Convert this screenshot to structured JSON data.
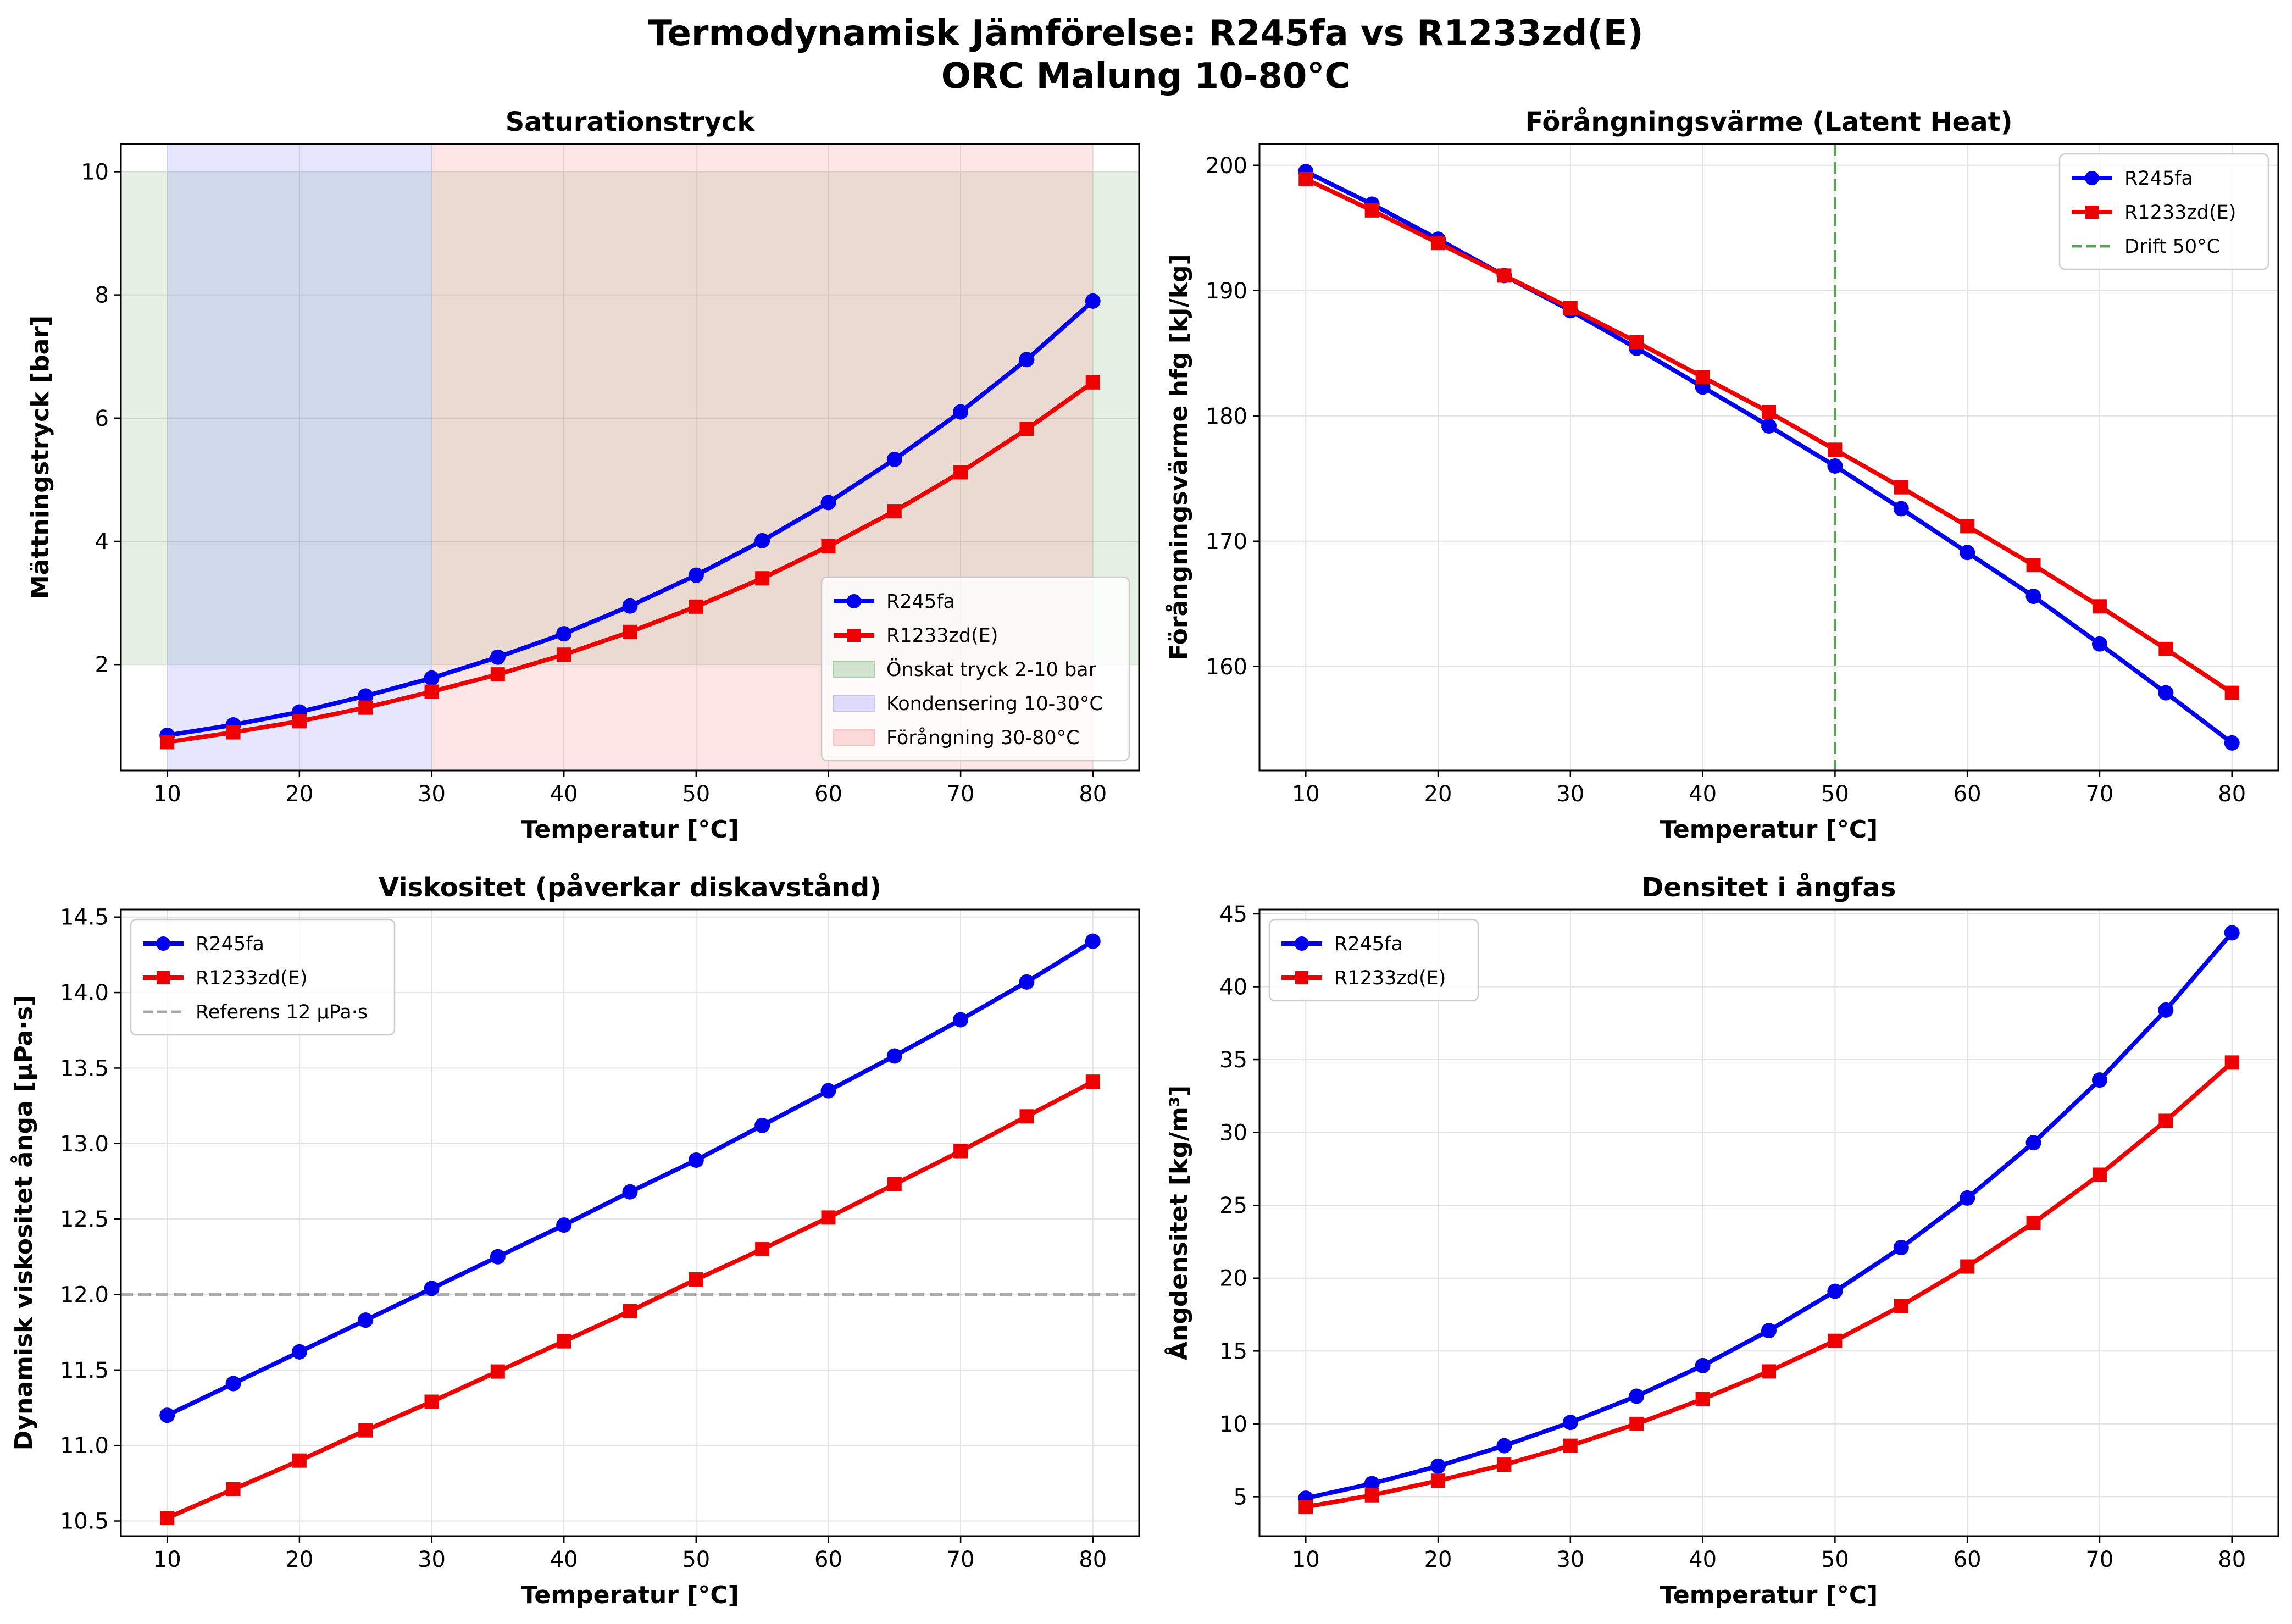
{
  "figure": {
    "title_line1": "Termodynamisk Jämförelse: R245fa vs R1233zd(E)",
    "title_line2": "ORC Malung 10-80°C"
  },
  "colors": {
    "r245fa": "#0000ee",
    "r1233zd": "#ee0000",
    "green_band": "#2e8b2e",
    "blue_band": "#6666ff",
    "red_band": "#ff6666",
    "drift_line": "#5aa05a",
    "ref_line": "#aaaaaa",
    "grid": "#e2e2e2"
  },
  "chart_data": [
    {
      "type": "line",
      "title": "Saturationstryck",
      "xlabel": "Temperatur [°C]",
      "ylabel": "Mättningstryck [bar]",
      "xlim": [
        6.5,
        83.5
      ],
      "ylim": [
        0.28,
        10.45
      ],
      "xticks": [
        10,
        20,
        30,
        40,
        50,
        60,
        70,
        80
      ],
      "yticks": [
        2,
        4,
        6,
        8,
        10
      ],
      "x": [
        10,
        15,
        20,
        25,
        30,
        35,
        40,
        45,
        50,
        55,
        60,
        65,
        70,
        75,
        80
      ],
      "series": [
        {
          "name": "R245fa",
          "marker": "circle",
          "values": [
            0.85,
            1.02,
            1.23,
            1.49,
            1.78,
            2.12,
            2.5,
            2.95,
            3.45,
            4.01,
            4.63,
            5.33,
            6.1,
            6.95,
            7.9
          ]
        },
        {
          "name": "R1233zd(E)",
          "marker": "square",
          "values": [
            0.74,
            0.9,
            1.08,
            1.3,
            1.56,
            1.84,
            2.16,
            2.53,
            2.94,
            3.4,
            3.92,
            4.49,
            5.12,
            5.82,
            6.58
          ]
        }
      ],
      "bands": [
        {
          "name": "Önskat tryck 2-10 bar",
          "axis": "y",
          "from": 2,
          "to": 10
        },
        {
          "name": "Kondensering 10-30°C",
          "axis": "x",
          "from": 10,
          "to": 30
        },
        {
          "name": "Förångning 30-80°C",
          "axis": "x",
          "from": 30,
          "to": 80
        }
      ],
      "legend": "lower-right"
    },
    {
      "type": "line",
      "title": "Förångningsvärme (Latent Heat)",
      "xlabel": "Temperatur [°C]",
      "ylabel": "Förångningsvärme hfg [kJ/kg]",
      "xlim": [
        6.5,
        83.5
      ],
      "ylim": [
        151.7,
        201.7
      ],
      "xticks": [
        10,
        20,
        30,
        40,
        50,
        60,
        70,
        80
      ],
      "yticks": [
        160,
        170,
        180,
        190,
        200
      ],
      "x": [
        10,
        15,
        20,
        25,
        30,
        35,
        40,
        45,
        50,
        55,
        60,
        65,
        70,
        75,
        80
      ],
      "series": [
        {
          "name": "R245fa",
          "marker": "circle",
          "values": [
            199.5,
            196.9,
            194.1,
            191.2,
            188.4,
            185.4,
            182.3,
            179.2,
            176.0,
            172.6,
            169.1,
            165.6,
            161.8,
            157.9,
            153.9
          ]
        },
        {
          "name": "R1233zd(E)",
          "marker": "square",
          "values": [
            198.9,
            196.4,
            193.8,
            191.2,
            188.6,
            185.9,
            183.1,
            180.3,
            177.3,
            174.3,
            171.2,
            168.1,
            164.8,
            161.4,
            157.9
          ]
        }
      ],
      "vlines": [
        {
          "name": "Drift 50°C",
          "x": 50
        }
      ],
      "legend": "upper-right"
    },
    {
      "type": "line",
      "title": "Viskositet (påverkar diskavstånd)",
      "xlabel": "Temperatur [°C]",
      "ylabel": "Dynamisk viskositet ånga [μPa·s]",
      "xlim": [
        6.5,
        83.5
      ],
      "ylim": [
        10.4,
        14.55
      ],
      "xticks": [
        10,
        20,
        30,
        40,
        50,
        60,
        70,
        80
      ],
      "yticks": [
        10.5,
        11.0,
        11.5,
        12.0,
        12.5,
        13.0,
        13.5,
        14.0,
        14.5
      ],
      "ytick_labels": [
        "10.5",
        "11.0",
        "11.5",
        "12.0",
        "12.5",
        "13.0",
        "13.5",
        "14.0",
        "14.5"
      ],
      "x": [
        10,
        15,
        20,
        25,
        30,
        35,
        40,
        45,
        50,
        55,
        60,
        65,
        70,
        75,
        80
      ],
      "series": [
        {
          "name": "R245fa",
          "marker": "circle",
          "values": [
            11.2,
            11.41,
            11.62,
            11.83,
            12.04,
            12.25,
            12.46,
            12.68,
            12.89,
            13.12,
            13.35,
            13.58,
            13.82,
            14.07,
            14.34
          ]
        },
        {
          "name": "R1233zd(E)",
          "marker": "square",
          "values": [
            10.52,
            10.71,
            10.9,
            11.1,
            11.29,
            11.49,
            11.69,
            11.89,
            12.1,
            12.3,
            12.51,
            12.73,
            12.95,
            13.18,
            13.41
          ]
        }
      ],
      "hlines": [
        {
          "name": "Referens 12 μPa·s",
          "y": 12.0
        }
      ],
      "legend": "upper-left"
    },
    {
      "type": "line",
      "title": "Densitet i ångfas",
      "xlabel": "Temperatur [°C]",
      "ylabel": "Ångdensitet [kg/m³]",
      "xlim": [
        6.5,
        83.5
      ],
      "ylim": [
        2.3,
        45.3
      ],
      "xticks": [
        10,
        20,
        30,
        40,
        50,
        60,
        70,
        80
      ],
      "yticks": [
        5,
        10,
        15,
        20,
        25,
        30,
        35,
        40,
        45
      ],
      "x": [
        10,
        15,
        20,
        25,
        30,
        35,
        40,
        45,
        50,
        55,
        60,
        65,
        70,
        75,
        80
      ],
      "series": [
        {
          "name": "R245fa",
          "marker": "circle",
          "values": [
            4.9,
            5.9,
            7.1,
            8.5,
            10.1,
            11.9,
            14.0,
            16.4,
            19.1,
            22.1,
            25.5,
            29.3,
            33.6,
            38.4,
            43.7
          ]
        },
        {
          "name": "R1233zd(E)",
          "marker": "square",
          "values": [
            4.3,
            5.1,
            6.1,
            7.2,
            8.5,
            10.0,
            11.7,
            13.6,
            15.7,
            18.1,
            20.8,
            23.8,
            27.1,
            30.8,
            34.8
          ]
        }
      ],
      "legend": "upper-left"
    }
  ]
}
